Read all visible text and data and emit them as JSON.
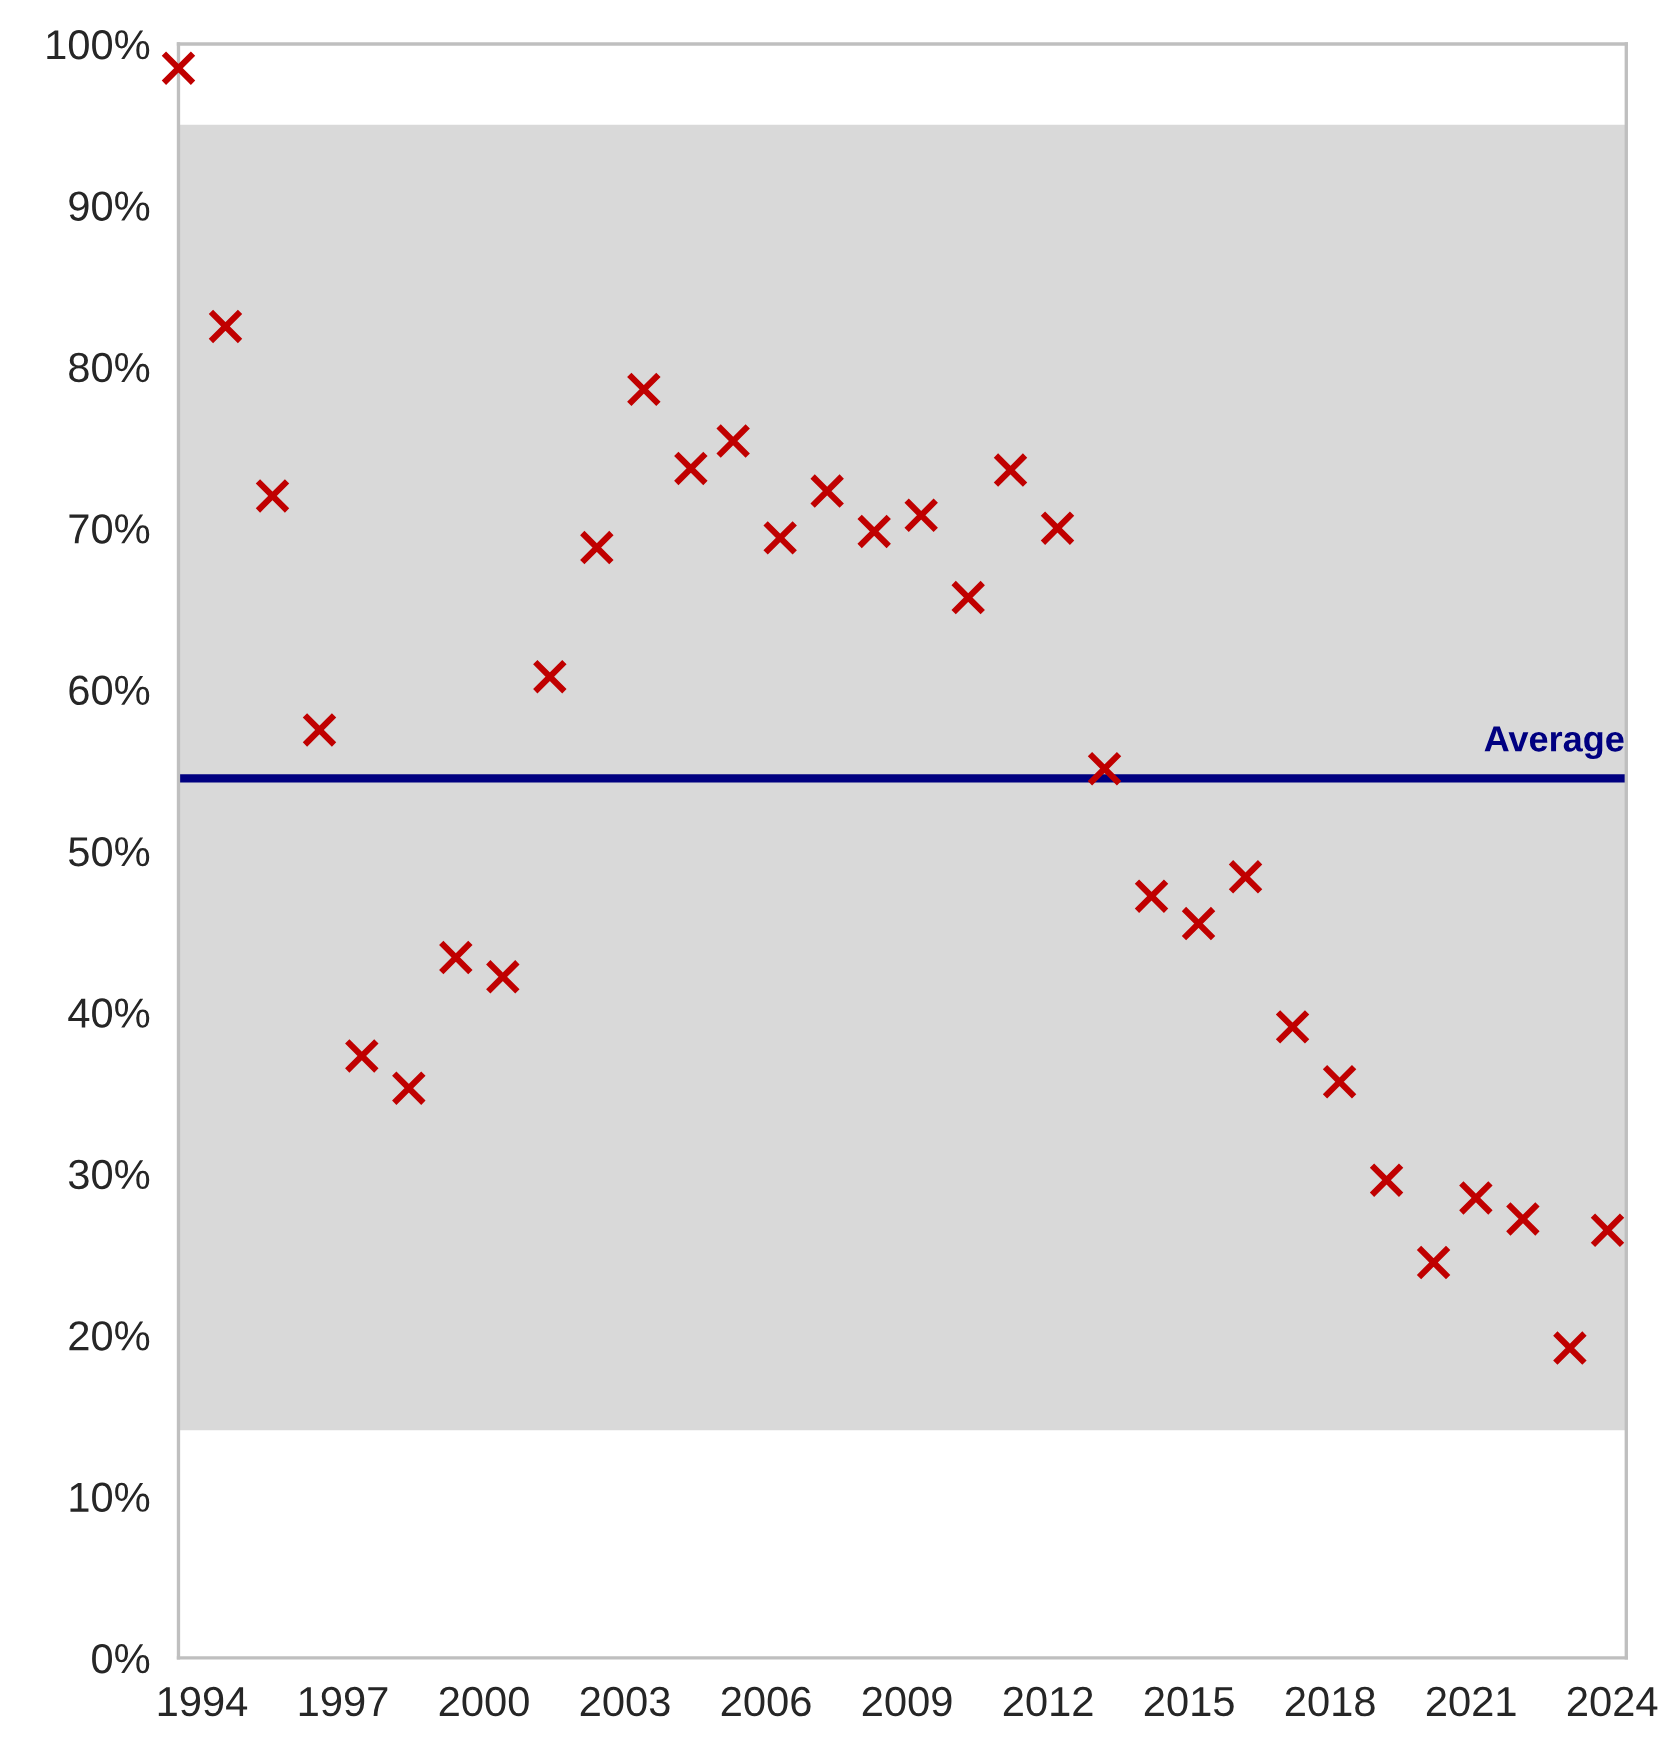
{
  "chart_data": {
    "type": "scatter",
    "x": [
      1993.5,
      1994.5,
      1995.5,
      1996.5,
      1997.4,
      1998.4,
      1999.4,
      2000.4,
      2001.4,
      2002.4,
      2003.4,
      2004.4,
      2005.3,
      2006.3,
      2007.3,
      2008.3,
      2009.3,
      2010.3,
      2011.2,
      2012.2,
      2013.2,
      2014.2,
      2015.2,
      2016.2,
      2017.2,
      2018.2,
      2019.2,
      2020.2,
      2021.1,
      2022.1,
      2023.1,
      2023.9
    ],
    "series": [
      {
        "color": "#c00000",
        "values": [
          98.5,
          82.5,
          72.0,
          57.5,
          37.3,
          35.3,
          43.4,
          42.2,
          60.8,
          68.8,
          78.6,
          73.7,
          75.4,
          69.4,
          72.3,
          69.8,
          70.8,
          65.7,
          73.6,
          70.0,
          55.1,
          47.2,
          45.5,
          48.4,
          39.1,
          35.7,
          29.6,
          24.5,
          28.5,
          27.2,
          19.2,
          26.5
        ]
      }
    ],
    "marker": "cross",
    "xlim": [
      1993.5,
      2024.3
    ],
    "xticks": [
      1994,
      1997,
      2000,
      2003,
      2006,
      2009,
      2012,
      2015,
      2018,
      2021,
      2024
    ],
    "ylim": [
      0,
      100
    ],
    "yticks": [
      {
        "value": 0,
        "label": "0%"
      },
      {
        "value": 10,
        "label": "10%"
      },
      {
        "value": 20,
        "label": "20%"
      },
      {
        "value": 30,
        "label": "30%"
      },
      {
        "value": 40,
        "label": "40%"
      },
      {
        "value": 50,
        "label": "50%"
      },
      {
        "value": 60,
        "label": "60%"
      },
      {
        "value": 70,
        "label": "70%"
      },
      {
        "value": 80,
        "label": "80%"
      },
      {
        "value": 90,
        "label": "90%"
      },
      {
        "value": 100,
        "label": "100%"
      }
    ],
    "ref_lines": [
      {
        "axis": "y",
        "value": 54.5,
        "label": "Average",
        "color": "#000080",
        "line_style": "solid"
      }
    ],
    "bands": [
      {
        "axis": "y",
        "from": 14.1,
        "to": 95.0,
        "color": "#d9d9d9"
      }
    ],
    "grid": false,
    "legend": false
  }
}
